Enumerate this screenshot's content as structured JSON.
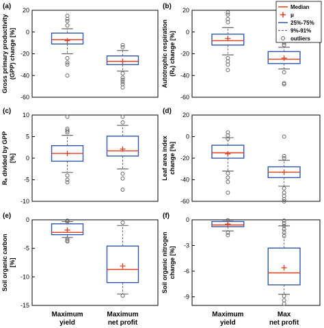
{
  "colors": {
    "box": "#2f56a8",
    "median": "#e23b1b",
    "mean": "#e23b1b",
    "outlier": "#666666",
    "axis": "#000000"
  },
  "legend": {
    "entries": [
      {
        "label": "Median",
        "kind": "median"
      },
      {
        "label": "μ",
        "kind": "mean"
      },
      {
        "label": "25%-75%",
        "kind": "box"
      },
      {
        "label": "9%-91%",
        "kind": "whisker"
      },
      {
        "label": "outliers",
        "kind": "outlier"
      }
    ]
  },
  "chart_data": [
    {
      "type": "box",
      "panel_label": "(a)",
      "ylabel": [
        "Gross primary productivity",
        "(GPP) change [%]"
      ],
      "ylim": [
        -60,
        20
      ],
      "yticks": [
        -60,
        -40,
        -20,
        0,
        20
      ],
      "categories": [],
      "boxes": [
        {
          "q1": -11,
          "median": -7,
          "q3": -1,
          "mean": -8,
          "whisker_low": -20,
          "whisker_high": 3,
          "outliers": [
            15,
            12,
            10,
            6,
            -24,
            -28,
            -30,
            -40
          ]
        },
        {
          "q1": -30,
          "median": -27,
          "q3": -22,
          "mean": -27,
          "whisker_low": -36,
          "whisker_high": -17,
          "outliers": [
            -12,
            -14,
            -38,
            -42,
            -44,
            -46,
            -48,
            -51
          ]
        }
      ]
    },
    {
      "type": "box",
      "panel_label": "(b)",
      "ylabel": [
        "Autotrophic respiration",
        "(Rₐ) change [%]"
      ],
      "ylim": [
        -60,
        20
      ],
      "yticks": [
        -60,
        -40,
        -20,
        0,
        20
      ],
      "categories": [],
      "boxes": [
        {
          "q1": -12,
          "median": -8,
          "q3": -2,
          "mean": -6,
          "whisker_low": -21,
          "whisker_high": 4,
          "outliers": [
            18,
            16,
            12,
            9,
            -24,
            -27,
            -30,
            -35
          ]
        },
        {
          "q1": -29,
          "median": -25,
          "q3": -18,
          "mean": -24,
          "whisker_low": -34,
          "whisker_high": -14,
          "outliers": [
            -10,
            -12,
            -37,
            -47,
            -48
          ]
        }
      ]
    },
    {
      "type": "box",
      "panel_label": "(c)",
      "ylabel": [
        "Rₐ divided by GPP",
        "[%]"
      ],
      "ylim": [
        -10,
        10
      ],
      "yticks": [
        -10,
        -5,
        0,
        5,
        10
      ],
      "categories": [],
      "boxes": [
        {
          "q1": -0.7,
          "median": 1.1,
          "q3": 2.9,
          "mean": 1.1,
          "whisker_low": -3.3,
          "whisker_high": 5.3,
          "outliers": [
            9.6,
            6.8,
            6.4,
            6.0,
            -4.0,
            -5.0,
            -5.6
          ]
        },
        {
          "q1": 0.5,
          "median": 1.7,
          "q3": 5.1,
          "mean": 2.1,
          "whisker_low": -2.5,
          "whisker_high": 7.6,
          "outliers": [
            9.6,
            8.3,
            -3.6,
            -4.7,
            -7.3
          ]
        }
      ]
    },
    {
      "type": "box",
      "panel_label": "(d)",
      "ylabel": [
        "Leaf area index",
        "change [%]"
      ],
      "ylim": [
        -60,
        20
      ],
      "yticks": [
        -60,
        -40,
        -20,
        0,
        20
      ],
      "categories": [],
      "boxes": [
        {
          "q1": -20,
          "median": -15,
          "q3": -8,
          "mean": -16,
          "whisker_low": -32,
          "whisker_high": -1,
          "outliers": [
            4,
            1,
            -2,
            -34,
            -38,
            -42,
            -52
          ]
        },
        {
          "q1": -38,
          "median": -33,
          "q3": -28,
          "mean": -33,
          "whisker_low": -46,
          "whisker_high": -22,
          "outliers": [
            0,
            -18,
            -20,
            -48,
            -52,
            -55,
            -58,
            -60
          ]
        }
      ]
    },
    {
      "type": "box",
      "panel_label": "(e)",
      "ylabel": [
        "Soil organic carbon",
        "[%]"
      ],
      "ylim": [
        -15,
        0
      ],
      "yticks": [
        -15,
        -10,
        -5,
        0
      ],
      "categories": [
        "Maximum\nyield",
        "Maximum\nnet profit"
      ],
      "boxes": [
        {
          "q1": -2.6,
          "median": -2.2,
          "q3": -0.7,
          "mean": -1.8,
          "whisker_low": -3.1,
          "whisker_high": -0.3,
          "outliers": [
            -0.15,
            -0.35,
            -3.3,
            -3.6,
            -3.8
          ]
        },
        {
          "q1": -11.0,
          "median": -8.7,
          "q3": -4.6,
          "mean": -8.1,
          "whisker_low": -13.0,
          "whisker_high": -1.0,
          "outliers": [
            -0.5,
            -13.3
          ]
        }
      ]
    },
    {
      "type": "box",
      "panel_label": "(f)",
      "ylabel": [
        "Soil organic nitrogen",
        "change [%]"
      ],
      "ylim": [
        -10,
        0
      ],
      "yticks": [
        -9,
        -6,
        -3,
        0
      ],
      "categories": [
        "Maximum\nyield",
        "Max\nnet profit"
      ],
      "boxes": [
        {
          "q1": -0.8,
          "median": -0.6,
          "q3": -0.2,
          "mean": -0.5,
          "whisker_low": -1.3,
          "whisker_high": -0.05,
          "outliers": [
            -0.05,
            -1.5,
            -1.8
          ]
        },
        {
          "q1": -7.6,
          "median": -6.2,
          "q3": -3.3,
          "mean": -5.6,
          "whisker_low": -8.7,
          "whisker_high": -0.7,
          "outliers": [
            -0.1,
            -0.4,
            -0.7,
            -1.1,
            -1.5,
            -1.9,
            -8.9,
            -9.4,
            -9.8
          ]
        }
      ]
    }
  ]
}
